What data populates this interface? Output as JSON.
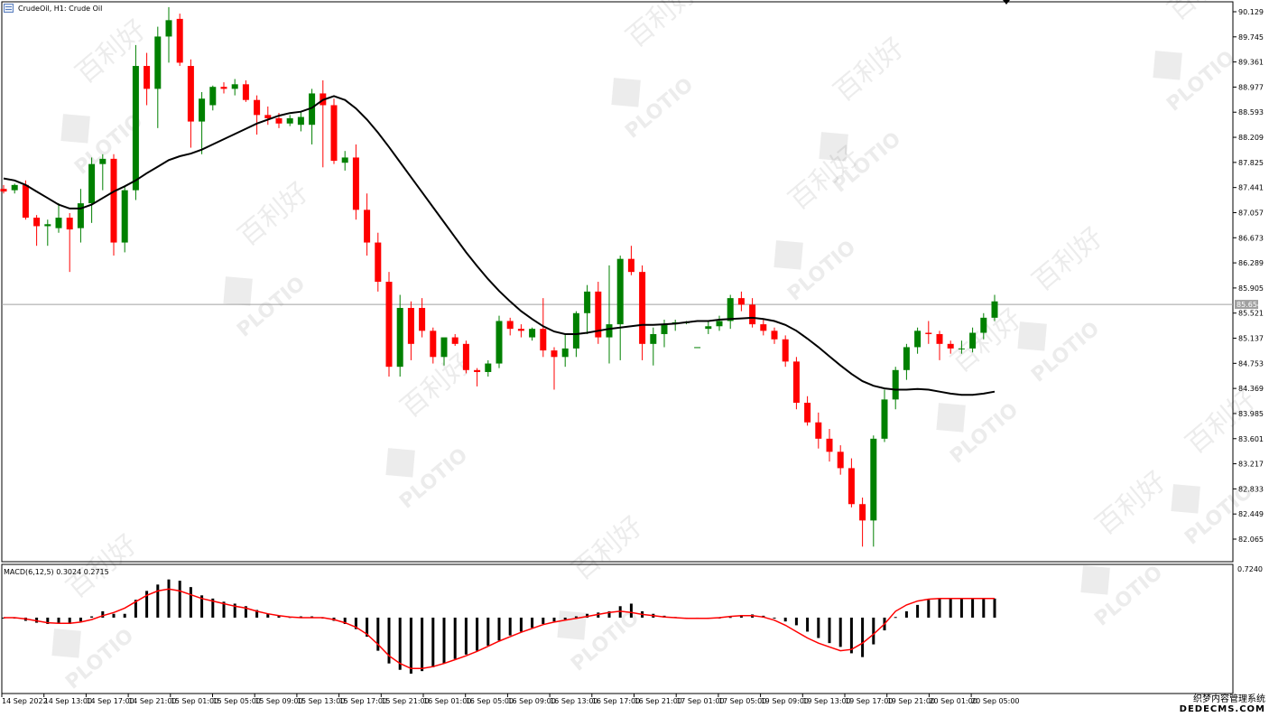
{
  "header": {
    "title": "CrudeOil, H1:  Crude Oil",
    "macd_label": "MACD(6,12,5) 0.3024 0.2715"
  },
  "watermark": {
    "brand": "PLOTIO",
    "cn": "百利好",
    "footer_line1": "织梦内容管理系统",
    "footer_line2": "DEDECMS.COM"
  },
  "colors": {
    "bull": "#008000",
    "bear": "#ff0000",
    "ma": "#000000",
    "signal": "#ff0000",
    "price_line": "#a0a0a0",
    "price_badge": "#a0a0a0"
  },
  "chart_data": [
    {
      "type": "candlestick",
      "title": "CrudeOil, H1:  Crude Oil",
      "y_ticks": [
        "90.129",
        "89.745",
        "89.361",
        "88.977",
        "88.593",
        "88.209",
        "87.825",
        "87.441",
        "87.057",
        "86.673",
        "86.289",
        "85.905",
        "85.521",
        "85.137",
        "84.753",
        "84.369",
        "83.985",
        "83.601",
        "83.217",
        "82.833",
        "82.449",
        "82.065"
      ],
      "ylim": [
        81.75,
        90.25
      ],
      "current_price": "85.654",
      "x_ticks": [
        "14 Sep 2022",
        "14 Sep 13:00",
        "14 Sep 17:00",
        "14 Sep 21:00",
        "15 Sep 01:00",
        "15 Sep 05:00",
        "15 Sep 09:00",
        "15 Sep 13:00",
        "15 Sep 17:00",
        "15 Sep 21:00",
        "16 Sep 01:00",
        "16 Sep 05:00",
        "16 Sep 09:00",
        "16 Sep 13:00",
        "16 Sep 17:00",
        "16 Sep 21:00",
        "17 Sep 01:00",
        "17 Sep 05:00",
        "19 Sep 09:00",
        "19 Sep 13:00",
        "19 Sep 17:00",
        "19 Sep 21:00",
        "20 Sep 01:00",
        "20 Sep 05:00"
      ],
      "candles": [
        {
          "o": 87.42,
          "h": 87.48,
          "l": 87.35,
          "c": 87.38
        },
        {
          "o": 87.4,
          "h": 87.5,
          "l": 87.35,
          "c": 87.48
        },
        {
          "o": 87.48,
          "h": 87.55,
          "l": 86.95,
          "c": 86.98
        },
        {
          "o": 86.98,
          "h": 87.02,
          "l": 86.55,
          "c": 86.85
        },
        {
          "o": 86.85,
          "h": 86.95,
          "l": 86.55,
          "c": 86.88
        },
        {
          "o": 86.82,
          "h": 87.2,
          "l": 86.75,
          "c": 86.98
        },
        {
          "o": 86.98,
          "h": 87.05,
          "l": 86.15,
          "c": 86.8
        },
        {
          "o": 86.82,
          "h": 87.42,
          "l": 86.6,
          "c": 87.2
        },
        {
          "o": 87.2,
          "h": 87.9,
          "l": 86.9,
          "c": 87.8
        },
        {
          "o": 87.8,
          "h": 87.95,
          "l": 87.4,
          "c": 87.88
        },
        {
          "o": 87.88,
          "h": 87.95,
          "l": 86.4,
          "c": 86.6
        },
        {
          "o": 86.6,
          "h": 87.45,
          "l": 86.45,
          "c": 87.4
        },
        {
          "o": 87.4,
          "h": 89.62,
          "l": 87.25,
          "c": 89.3
        },
        {
          "o": 89.3,
          "h": 89.5,
          "l": 88.7,
          "c": 88.95
        },
        {
          "o": 88.95,
          "h": 89.9,
          "l": 88.35,
          "c": 89.75
        },
        {
          "o": 89.75,
          "h": 90.2,
          "l": 89.35,
          "c": 90.0
        },
        {
          "o": 90.02,
          "h": 90.1,
          "l": 89.3,
          "c": 89.35
        },
        {
          "o": 89.3,
          "h": 89.4,
          "l": 88.05,
          "c": 88.45
        },
        {
          "o": 88.45,
          "h": 88.9,
          "l": 87.95,
          "c": 88.8
        },
        {
          "o": 88.7,
          "h": 89.0,
          "l": 88.62,
          "c": 88.98
        },
        {
          "o": 88.98,
          "h": 89.05,
          "l": 88.88,
          "c": 88.95
        },
        {
          "o": 88.95,
          "h": 89.1,
          "l": 88.85,
          "c": 89.02
        },
        {
          "o": 89.02,
          "h": 89.08,
          "l": 88.75,
          "c": 88.78
        },
        {
          "o": 88.78,
          "h": 88.85,
          "l": 88.25,
          "c": 88.55
        },
        {
          "o": 88.55,
          "h": 88.68,
          "l": 88.4,
          "c": 88.5
        },
        {
          "o": 88.5,
          "h": 88.58,
          "l": 88.35,
          "c": 88.42
        },
        {
          "o": 88.42,
          "h": 88.55,
          "l": 88.38,
          "c": 88.5
        },
        {
          "o": 88.4,
          "h": 88.6,
          "l": 88.3,
          "c": 88.52
        },
        {
          "o": 88.4,
          "h": 88.95,
          "l": 88.1,
          "c": 88.88
        },
        {
          "o": 88.88,
          "h": 89.08,
          "l": 87.75,
          "c": 88.7
        },
        {
          "o": 88.7,
          "h": 88.8,
          "l": 87.8,
          "c": 87.85
        },
        {
          "o": 87.82,
          "h": 88.0,
          "l": 87.7,
          "c": 87.9
        },
        {
          "o": 87.9,
          "h": 88.1,
          "l": 86.95,
          "c": 87.1
        },
        {
          "o": 87.1,
          "h": 87.35,
          "l": 86.4,
          "c": 86.6
        },
        {
          "o": 86.6,
          "h": 86.75,
          "l": 85.85,
          "c": 86.0
        },
        {
          "o": 86.0,
          "h": 86.15,
          "l": 84.55,
          "c": 84.7
        },
        {
          "o": 84.7,
          "h": 85.8,
          "l": 84.55,
          "c": 85.6
        },
        {
          "o": 85.6,
          "h": 85.7,
          "l": 84.8,
          "c": 85.05
        },
        {
          "o": 85.6,
          "h": 85.75,
          "l": 85.15,
          "c": 85.25
        },
        {
          "o": 85.25,
          "h": 85.3,
          "l": 84.75,
          "c": 84.85
        },
        {
          "o": 84.85,
          "h": 85.1,
          "l": 84.72,
          "c": 85.15
        },
        {
          "o": 85.15,
          "h": 85.2,
          "l": 85.02,
          "c": 85.05
        },
        {
          "o": 85.05,
          "h": 85.1,
          "l": 84.6,
          "c": 84.65
        },
        {
          "o": 84.65,
          "h": 84.68,
          "l": 84.4,
          "c": 84.62
        },
        {
          "o": 84.62,
          "h": 84.8,
          "l": 84.55,
          "c": 84.75
        },
        {
          "o": 84.75,
          "h": 85.48,
          "l": 84.68,
          "c": 85.4
        },
        {
          "o": 85.4,
          "h": 85.45,
          "l": 85.18,
          "c": 85.28
        },
        {
          "o": 85.28,
          "h": 85.35,
          "l": 85.15,
          "c": 85.25
        },
        {
          "o": 85.15,
          "h": 85.3,
          "l": 85.1,
          "c": 85.28
        },
        {
          "o": 85.28,
          "h": 85.75,
          "l": 84.85,
          "c": 84.95
        },
        {
          "o": 84.95,
          "h": 85.0,
          "l": 84.35,
          "c": 84.85
        },
        {
          "o": 84.85,
          "h": 85.2,
          "l": 84.7,
          "c": 84.98
        },
        {
          "o": 84.98,
          "h": 85.55,
          "l": 84.85,
          "c": 85.52
        },
        {
          "o": 85.52,
          "h": 85.95,
          "l": 85.2,
          "c": 85.85
        },
        {
          "o": 85.85,
          "h": 86.0,
          "l": 85.05,
          "c": 85.15
        },
        {
          "o": 85.15,
          "h": 86.25,
          "l": 84.75,
          "c": 85.35
        },
        {
          "o": 85.35,
          "h": 86.4,
          "l": 84.8,
          "c": 86.35
        },
        {
          "o": 86.35,
          "h": 86.55,
          "l": 86.1,
          "c": 86.15
        },
        {
          "o": 86.15,
          "h": 86.25,
          "l": 84.8,
          "c": 85.05
        },
        {
          "o": 85.05,
          "h": 85.3,
          "l": 84.72,
          "c": 85.2
        },
        {
          "o": 85.2,
          "h": 85.42,
          "l": 85.0,
          "c": 85.35
        },
        {
          "o": 85.35,
          "h": 85.42,
          "l": 85.25,
          "c": 85.38
        },
        {
          "o": 85.38,
          "h": 85.4,
          "l": 85.35,
          "c": 85.38
        },
        {
          "o": 85.0,
          "h": 85.0,
          "l": 85.0,
          "c": 85.0
        },
        {
          "o": 85.28,
          "h": 85.4,
          "l": 85.2,
          "c": 85.32
        },
        {
          "o": 85.32,
          "h": 85.48,
          "l": 85.25,
          "c": 85.4
        },
        {
          "o": 85.4,
          "h": 85.8,
          "l": 85.28,
          "c": 85.75
        },
        {
          "o": 85.75,
          "h": 85.85,
          "l": 85.55,
          "c": 85.65
        },
        {
          "o": 85.65,
          "h": 85.75,
          "l": 85.3,
          "c": 85.35
        },
        {
          "o": 85.35,
          "h": 85.42,
          "l": 85.18,
          "c": 85.25
        },
        {
          "o": 85.25,
          "h": 85.3,
          "l": 85.05,
          "c": 85.12
        },
        {
          "o": 85.12,
          "h": 85.18,
          "l": 84.7,
          "c": 84.78
        },
        {
          "o": 84.78,
          "h": 84.85,
          "l": 84.05,
          "c": 84.15
        },
        {
          "o": 84.15,
          "h": 84.25,
          "l": 83.8,
          "c": 83.85
        },
        {
          "o": 83.85,
          "h": 84.0,
          "l": 83.45,
          "c": 83.6
        },
        {
          "o": 83.6,
          "h": 83.75,
          "l": 83.25,
          "c": 83.4
        },
        {
          "o": 83.4,
          "h": 83.5,
          "l": 83.05,
          "c": 83.15
        },
        {
          "o": 83.15,
          "h": 83.3,
          "l": 82.55,
          "c": 82.6
        },
        {
          "o": 82.6,
          "h": 82.7,
          "l": 81.95,
          "c": 82.35
        },
        {
          "o": 82.35,
          "h": 83.65,
          "l": 81.95,
          "c": 83.6
        },
        {
          "o": 83.6,
          "h": 84.35,
          "l": 83.55,
          "c": 84.2
        },
        {
          "o": 84.2,
          "h": 84.7,
          "l": 84.05,
          "c": 84.65
        },
        {
          "o": 84.65,
          "h": 85.05,
          "l": 84.5,
          "c": 85.0
        },
        {
          "o": 85.0,
          "h": 85.3,
          "l": 84.9,
          "c": 85.25
        },
        {
          "o": 85.22,
          "h": 85.4,
          "l": 85.05,
          "c": 85.2
        },
        {
          "o": 85.2,
          "h": 85.25,
          "l": 84.8,
          "c": 85.05
        },
        {
          "o": 85.05,
          "h": 85.1,
          "l": 84.9,
          "c": 84.98
        },
        {
          "o": 84.98,
          "h": 85.1,
          "l": 84.9,
          "c": 84.98
        },
        {
          "o": 84.98,
          "h": 85.3,
          "l": 84.92,
          "c": 85.22
        },
        {
          "o": 85.22,
          "h": 85.52,
          "l": 85.12,
          "c": 85.45
        },
        {
          "o": 85.45,
          "h": 85.8,
          "l": 85.4,
          "c": 85.7
        }
      ],
      "ma": [
        87.58,
        87.55,
        87.48,
        87.38,
        87.28,
        87.18,
        87.12,
        87.12,
        87.18,
        87.28,
        87.38,
        87.46,
        87.55,
        87.66,
        87.76,
        87.86,
        87.92,
        87.96,
        88.02,
        88.1,
        88.18,
        88.26,
        88.34,
        88.42,
        88.48,
        88.54,
        88.58,
        88.6,
        88.66,
        88.78,
        88.84,
        88.78,
        88.65,
        88.48,
        88.28,
        88.06,
        87.83,
        87.6,
        87.37,
        87.14,
        86.91,
        86.68,
        86.45,
        86.24,
        86.04,
        85.86,
        85.7,
        85.55,
        85.43,
        85.32,
        85.24,
        85.2,
        85.2,
        85.22,
        85.25,
        85.28,
        85.3,
        85.32,
        85.34,
        85.34,
        85.35,
        85.36,
        85.38,
        85.4,
        85.4,
        85.42,
        85.43,
        85.44,
        85.45,
        85.43,
        85.4,
        85.34,
        85.25,
        85.13,
        85.0,
        84.86,
        84.72,
        84.59,
        84.48,
        84.41,
        84.37,
        84.35,
        84.35,
        84.36,
        84.35,
        84.32,
        84.29,
        84.27,
        84.27,
        84.29,
        84.32
      ],
      "macd": {
        "label": "MACD(6,12,5) 0.3024 0.2715",
        "value_tick": "0.7240",
        "ylim": [
          -1.15,
          0.78
        ],
        "hist": [
          0.0,
          0.0,
          -0.05,
          -0.08,
          -0.1,
          -0.09,
          -0.1,
          -0.06,
          0.02,
          0.1,
          0.06,
          0.06,
          0.28,
          0.42,
          0.52,
          0.6,
          0.58,
          0.48,
          0.35,
          0.3,
          0.25,
          0.22,
          0.18,
          0.12,
          0.06,
          0.03,
          0.01,
          0.02,
          0.02,
          -0.01,
          -0.05,
          -0.1,
          -0.18,
          -0.3,
          -0.52,
          -0.72,
          -0.82,
          -0.88,
          -0.84,
          -0.78,
          -0.72,
          -0.65,
          -0.58,
          -0.52,
          -0.44,
          -0.36,
          -0.28,
          -0.22,
          -0.16,
          -0.1,
          -0.06,
          -0.03,
          0.02,
          0.06,
          0.08,
          0.1,
          0.18,
          0.22,
          0.1,
          0.06,
          0.03,
          0.01,
          0.0,
          -0.02,
          -0.01,
          0.0,
          0.01,
          0.04,
          0.05,
          0.03,
          -0.01,
          -0.06,
          -0.12,
          -0.22,
          -0.32,
          -0.4,
          -0.46,
          -0.56,
          -0.62,
          -0.42,
          -0.2,
          0.01,
          0.1,
          0.2,
          0.28,
          0.3,
          0.3,
          0.3,
          0.29,
          0.29,
          0.3
        ],
        "signal": [
          0.0,
          0.0,
          -0.02,
          -0.05,
          -0.08,
          -0.09,
          -0.09,
          -0.07,
          -0.03,
          0.03,
          0.08,
          0.15,
          0.25,
          0.35,
          0.42,
          0.45,
          0.42,
          0.36,
          0.3,
          0.26,
          0.22,
          0.18,
          0.15,
          0.1,
          0.06,
          0.03,
          0.01,
          0.0,
          0.0,
          0.0,
          -0.03,
          -0.08,
          -0.15,
          -0.26,
          -0.42,
          -0.6,
          -0.72,
          -0.8,
          -0.8,
          -0.77,
          -0.72,
          -0.66,
          -0.6,
          -0.53,
          -0.45,
          -0.37,
          -0.3,
          -0.23,
          -0.17,
          -0.11,
          -0.07,
          -0.04,
          -0.01,
          0.02,
          0.05,
          0.08,
          0.1,
          0.08,
          0.05,
          0.03,
          0.01,
          0.0,
          -0.01,
          -0.01,
          -0.01,
          0.0,
          0.02,
          0.03,
          0.03,
          0.01,
          -0.04,
          -0.12,
          -0.22,
          -0.32,
          -0.4,
          -0.46,
          -0.52,
          -0.5,
          -0.4,
          -0.26,
          -0.1,
          0.1,
          0.2,
          0.26,
          0.29,
          0.3,
          0.3,
          0.3,
          0.3,
          0.3,
          0.3
        ]
      }
    }
  ]
}
